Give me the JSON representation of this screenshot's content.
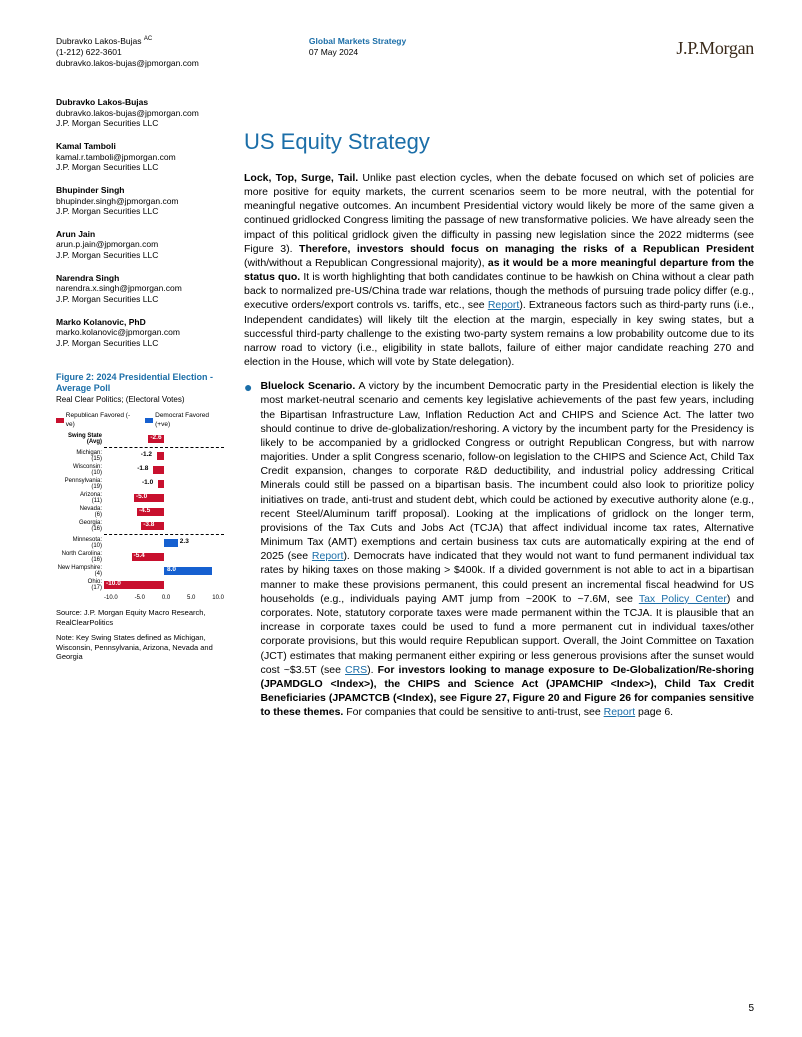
{
  "header": {
    "author_line1": "Dubravko Lakos-Bujas",
    "author_sup": "AC",
    "phone": "(1-212) 622-3601",
    "email": "dubravko.lakos-bujas@jpmorgan.com",
    "dept": "Global Markets Strategy",
    "date": "07 May 2024",
    "logo": "J.P.Morgan"
  },
  "authors": [
    {
      "name": "Dubravko Lakos-Bujas",
      "email": "dubravko.lakos-bujas@jpmorgan.com",
      "firm": "J.P. Morgan Securities LLC"
    },
    {
      "name": "Kamal Tamboli",
      "email": "kamal.r.tamboli@jpmorgan.com",
      "firm": "J.P. Morgan Securities LLC"
    },
    {
      "name": "Bhupinder Singh",
      "email": "bhupinder.singh@jpmorgan.com",
      "firm": "J.P. Morgan Securities LLC"
    },
    {
      "name": "Arun Jain",
      "email": "arun.p.jain@jpmorgan.com",
      "firm": "J.P. Morgan Securities LLC"
    },
    {
      "name": "Narendra Singh",
      "email": "narendra.x.singh@jpmorgan.com",
      "firm": "J.P. Morgan Securities LLC"
    },
    {
      "name": "Marko Kolanovic, PhD",
      "email": "marko.kolanovic@jpmorgan.com",
      "firm": "J.P. Morgan Securities LLC"
    }
  ],
  "figure": {
    "title": "Figure 2: 2024 Presidential Election - Average Poll",
    "subtitle": "Real Clear Politics; (Electoral Votes)",
    "legend": {
      "rep": "Republican Favored (-ve)",
      "dem": "Democrat Favored (+ve)"
    },
    "colors": {
      "rep": "#c8102e",
      "dem": "#1660d0",
      "avg": "#c8102e"
    },
    "xlim": [
      -10,
      10
    ],
    "xticks": [
      "-10.0",
      "-5.0",
      "0.0",
      "5.0",
      "10.0"
    ],
    "groups": [
      {
        "rows": [
          {
            "label": "Swing State (Avg)",
            "votes": "",
            "value": -2.6,
            "color": "#c8102e",
            "bold": true
          }
        ]
      },
      {
        "rows": [
          {
            "label": "Michigan:",
            "votes": "(15)",
            "value": -1.2,
            "color": "#c8102e"
          },
          {
            "label": "Wisconsin:",
            "votes": "(10)",
            "value": -1.8,
            "color": "#c8102e"
          },
          {
            "label": "Pennsylvania:",
            "votes": "(19)",
            "value": -1.0,
            "color": "#c8102e"
          },
          {
            "label": "Arizona:",
            "votes": "(11)",
            "value": -5.0,
            "color": "#c8102e"
          },
          {
            "label": "Nevada:",
            "votes": "(6)",
            "value": -4.5,
            "color": "#c8102e"
          },
          {
            "label": "Georgia:",
            "votes": "(16)",
            "value": -3.8,
            "color": "#c8102e"
          }
        ]
      },
      {
        "rows": [
          {
            "label": "Minnesota:",
            "votes": "(10)",
            "value": 2.3,
            "color": "#1660d0"
          },
          {
            "label": "North Carolina:",
            "votes": "(16)",
            "value": -5.4,
            "color": "#c8102e"
          },
          {
            "label": "New Hampshire:",
            "votes": "(4)",
            "value": 8.0,
            "color": "#1660d0"
          },
          {
            "label": "Ohio:",
            "votes": "(17)",
            "value": -10.0,
            "color": "#c8102e"
          }
        ]
      }
    ],
    "source1": "Source: J.P. Morgan Equity Macro Research, RealClearPolitics",
    "source2": "Note: Key Swing States defined as Michigan, Wisconsin, Pennsylvania, Arizona, Nevada and Georgia"
  },
  "main": {
    "title": "US Equity Strategy",
    "p1_lead": "Lock, Top, Surge, Tail.",
    "p1_a": " Unlike past election cycles, when the debate focused on which set of policies are more positive for equity markets, the current scenarios seem to be more neutral, with the potential for meaningful negative outcomes. An incumbent Presidential victory would likely be more of the same given a continued gridlocked Congress limiting the passage of new transformative policies. We have already seen the impact of this political gridlock given the difficulty in passing new legislation since the 2022 midterms (see Figure 3). ",
    "p1_bold": "Therefore, investors should focus on managing the risks of a Republican President ",
    "p1_b": "(with/without a Republican Congressional majority),",
    "p1_bold2": " as it would be a more meaningful departure from the status quo.",
    "p1_c": " It is worth highlighting that both candidates continue to be hawkish on China without a clear path back to normalized pre-US/China trade war relations, though the methods of pursuing trade policy differ (e.g., executive orders/export controls vs. tariffs, etc., see ",
    "p1_link1": "Report",
    "p1_d": "). Extraneous factors such as third-party runs (i.e., Independent candidates) will likely tilt the election at the margin, especially in key swing states, but a successful third-party challenge to the existing two-party system remains a low probability outcome due to its narrow road to victory (i.e., eligibility in state ballots, failure of either major candidate reaching 270 and election in the House, which will vote by State delegation).",
    "bullet_lead": "Bluelock Scenario.",
    "bullet_a": " A victory by the incumbent Democratic party in the Presidential election is likely the most market-neutral scenario and cements key legislative achievements of the past few years, including the Bipartisan Infrastructure Law, Inflation Reduction Act and CHIPS and Science Act. The latter two should continue to drive de-globalization/reshoring. A victory by the incumbent party for the Presidency is likely to be accompanied by a gridlocked Congress or outright Republican Congress, but with narrow majorities. Under a split Congress scenario, follow-on legislation to the CHIPS and Science Act, Child Tax Credit expansion, changes to corporate R&D deductibility, and industrial policy addressing Critical Minerals could still be passed on a bipartisan basis. The incumbent could also look to prioritize policy initiatives on trade, anti-trust and student debt, which could be actioned by executive authority alone (e.g., recent Steel/Aluminum tariff proposal). Looking at the implications of gridlock on the longer term, provisions of the Tax Cuts and Jobs Act (TCJA) that affect individual income tax rates, Alternative Minimum Tax (AMT) exemptions and certain business tax cuts are automatically expiring at the end of 2025 (see ",
    "bullet_link1": "Report",
    "bullet_b": "). Democrats have indicated that they would not want to fund permanent individual tax rates by hiking taxes on those making > $400k. If a divided government is not able to act in a bipartisan manner to make these provisions permanent, this could present an incremental fiscal headwind for US households (e.g., individuals paying AMT jump from ~200K to ~7.6M, see ",
    "bullet_link2": "Tax Policy Center",
    "bullet_c": ") and corporates. Note, statutory corporate taxes were made permanent within the TCJA. It is plausible that an increase in corporate taxes could be used to fund a more permanent cut in individual taxes/other corporate provisions, but this would require Republican support. Overall, the Joint Committee on Taxation (JCT) estimates that making permanent either expiring or less generous provisions after the sunset would cost ~$3.5T (see ",
    "bullet_link3": "CRS",
    "bullet_d": "). ",
    "bullet_bold": "For investors looking to manage exposure to De-Globalization/Re-shoring (JPAMDGLO <Index>), the CHIPS and Science Act (JPAMCHIP <Index>), Child Tax Credit Beneficiaries (JPAMCTCB (<Index), see Figure 27, Figure 20 and Figure 26 for companies sensitive to these themes.",
    "bullet_e": " For companies that could be sensitive to anti-trust, see ",
    "bullet_link4": "Report",
    "bullet_f": " page 6."
  },
  "page_num": "5"
}
